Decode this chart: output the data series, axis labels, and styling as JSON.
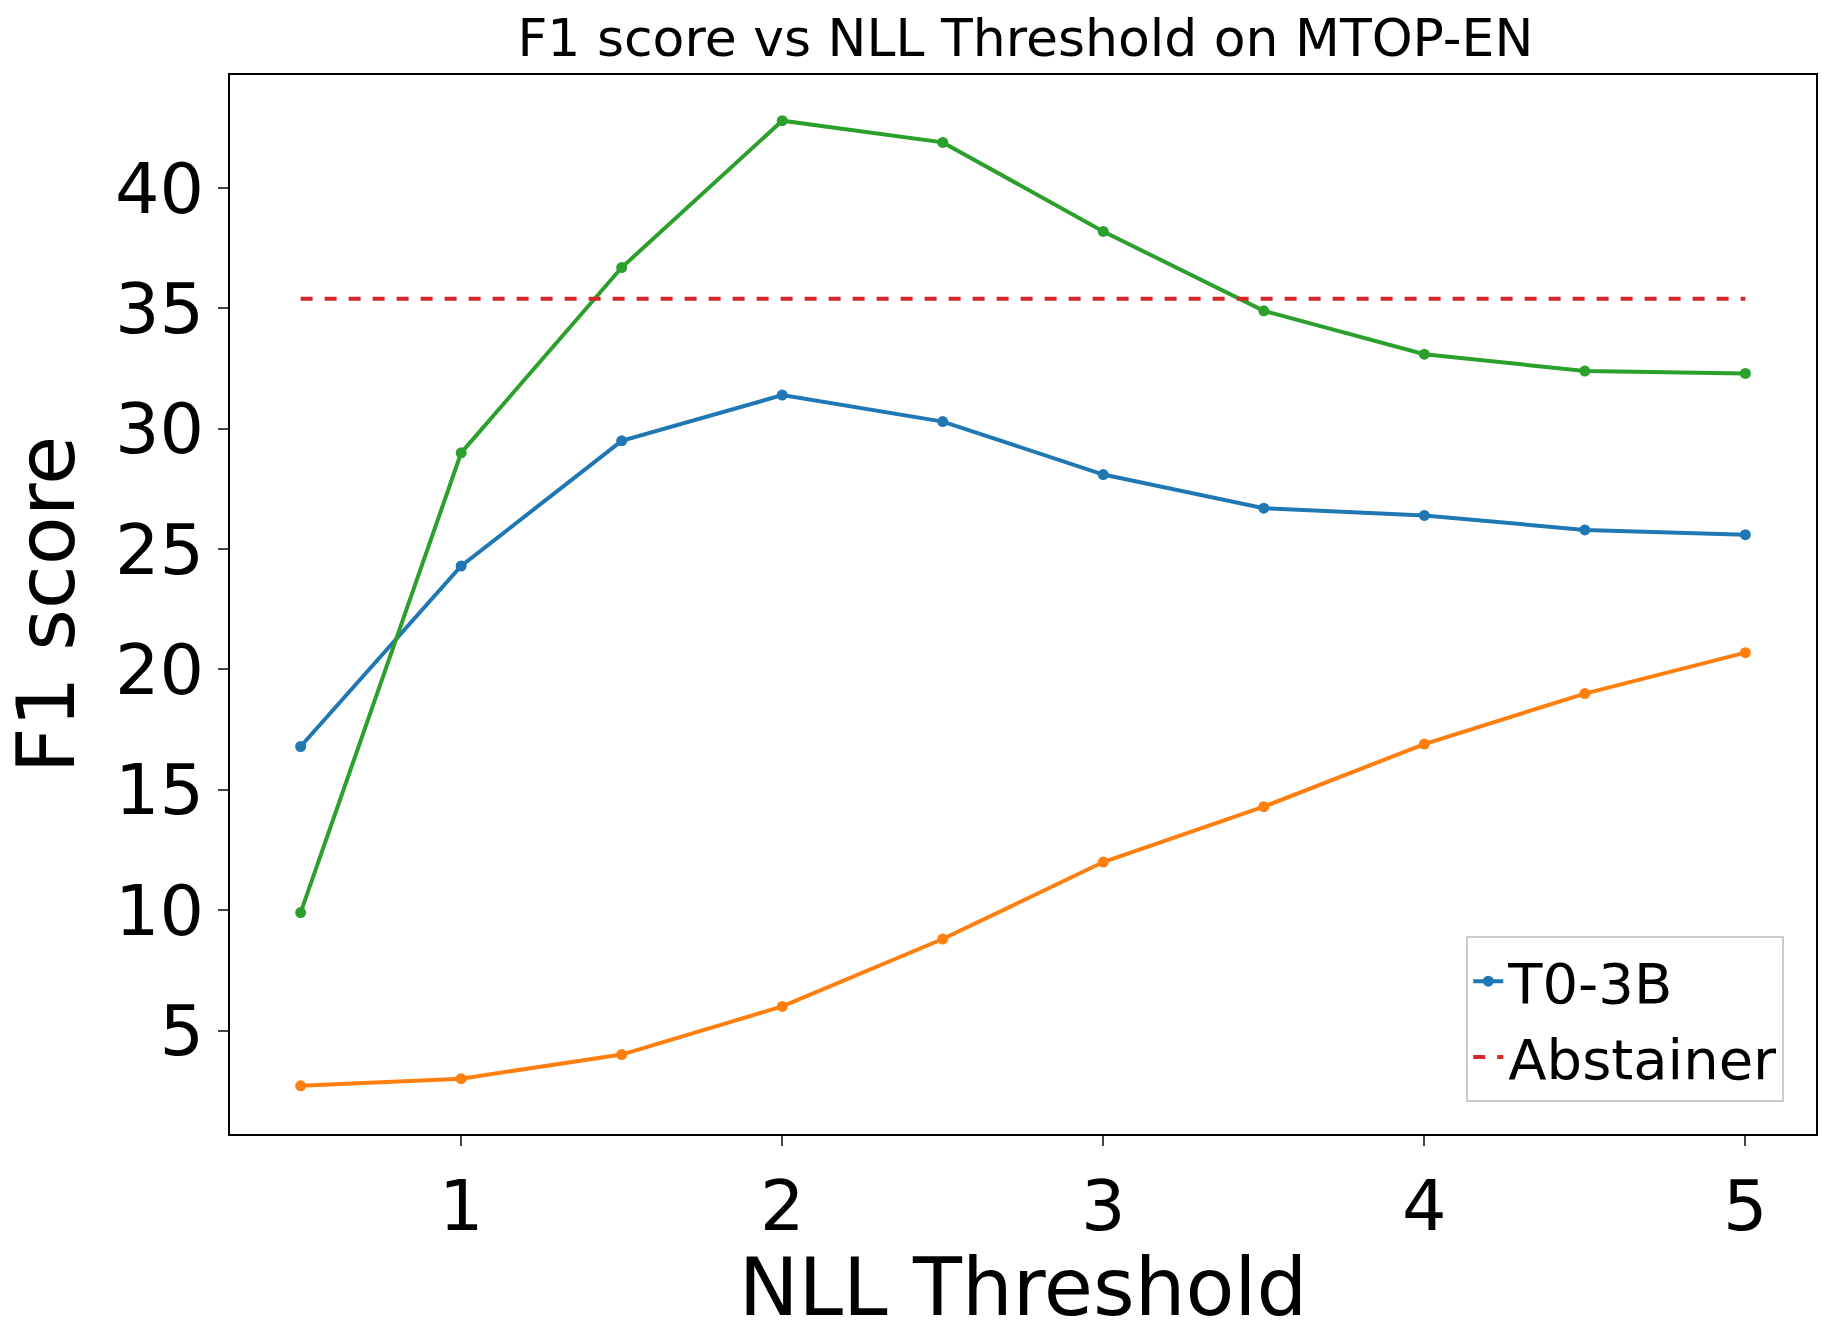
{
  "chart_data": {
    "type": "line",
    "title": "F1 score vs NLL Threshold on MTOP-EN",
    "xlabel": "NLL Threshold",
    "ylabel": "F1 score",
    "x": [
      0.5,
      1,
      1.5,
      2,
      2.5,
      3,
      3.5,
      4,
      4.5,
      5
    ],
    "series": [
      {
        "name": "T0-3B",
        "color": "#1f77b4",
        "values": [
          16.8,
          24.3,
          29.5,
          31.4,
          30.3,
          28.1,
          26.7,
          26.4,
          25.8,
          25.6
        ]
      },
      {
        "color": "#ff7f0e",
        "values": [
          2.7,
          3.0,
          4.0,
          6.0,
          8.8,
          12.0,
          14.3,
          16.9,
          19.0,
          20.7
        ]
      },
      {
        "color": "#2ca02c",
        "values": [
          9.9,
          29.0,
          36.7,
          42.8,
          41.9,
          38.2,
          34.9,
          33.1,
          32.4,
          32.3
        ]
      },
      {
        "name": "Abstainer",
        "color": "#d62728",
        "x": [
          0.5,
          5
        ],
        "values": [
          35.4,
          35.4
        ],
        "marker": "none",
        "line_style": "dashed"
      }
    ],
    "marker": "circle",
    "line_style": "solid",
    "xlim": [
      0.28,
      5.22
    ],
    "xticks": [
      1,
      2,
      3,
      4,
      5
    ],
    "ylim": [
      0.7,
      44.7
    ],
    "yticks": [
      5,
      10,
      15,
      20,
      25,
      30,
      35,
      40
    ],
    "legend": "bottom right"
  }
}
